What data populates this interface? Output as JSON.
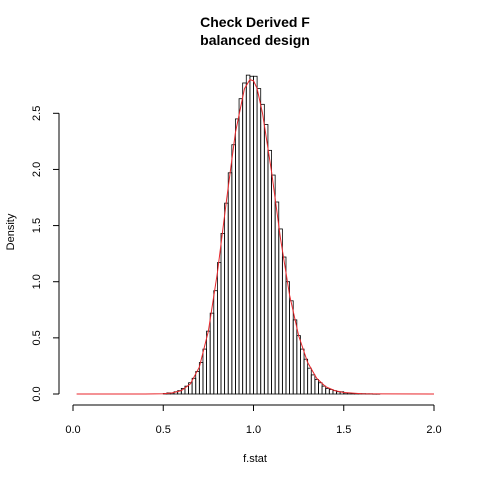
{
  "chart_data": {
    "type": "bar",
    "title_lines": [
      "Check Derived F",
      "balanced design"
    ],
    "xlabel": "f.stat",
    "ylabel": "Density",
    "xlim": [
      0,
      2
    ],
    "ylim": [
      0,
      2.85
    ],
    "x_ticks": [
      {
        "value": 0.0,
        "label": "0.0"
      },
      {
        "value": 0.5,
        "label": "0.5"
      },
      {
        "value": 1.0,
        "label": "1.0"
      },
      {
        "value": 1.5,
        "label": "1.5"
      },
      {
        "value": 2.0,
        "label": "2.0"
      }
    ],
    "y_ticks": [
      {
        "value": 0.0,
        "label": "0.0"
      },
      {
        "value": 0.5,
        "label": "0.5"
      },
      {
        "value": 1.0,
        "label": "1.0"
      },
      {
        "value": 1.5,
        "label": "1.5"
      },
      {
        "value": 2.0,
        "label": "2.0"
      },
      {
        "value": 2.5,
        "label": "2.5"
      }
    ],
    "bin_width": 0.02,
    "bins_start": [
      0.5,
      0.52,
      0.54,
      0.56,
      0.58,
      0.6,
      0.62,
      0.64,
      0.66,
      0.68,
      0.7,
      0.72,
      0.74,
      0.76,
      0.78,
      0.8,
      0.82,
      0.84,
      0.86,
      0.88,
      0.9,
      0.92,
      0.94,
      0.96,
      0.98,
      1.0,
      1.02,
      1.04,
      1.06,
      1.08,
      1.1,
      1.12,
      1.14,
      1.16,
      1.18,
      1.2,
      1.22,
      1.24,
      1.26,
      1.28,
      1.3,
      1.32,
      1.34,
      1.36,
      1.38,
      1.4,
      1.42,
      1.44,
      1.46,
      1.48,
      1.5,
      1.52,
      1.54,
      1.56,
      1.58,
      1.6,
      1.62,
      1.64,
      1.66,
      1.68
    ],
    "density": [
      0.005,
      0.01,
      0.01,
      0.02,
      0.03,
      0.05,
      0.07,
      0.1,
      0.14,
      0.2,
      0.28,
      0.4,
      0.56,
      0.72,
      0.92,
      1.17,
      1.43,
      1.7,
      1.97,
      2.22,
      2.45,
      2.63,
      2.77,
      2.84,
      2.83,
      2.83,
      2.72,
      2.58,
      2.4,
      2.17,
      1.95,
      1.71,
      1.47,
      1.22,
      1.0,
      0.83,
      0.66,
      0.52,
      0.4,
      0.31,
      0.23,
      0.17,
      0.13,
      0.1,
      0.07,
      0.05,
      0.04,
      0.03,
      0.02,
      0.02,
      0.01,
      0.01,
      0.005,
      0.005,
      0.003,
      0.003,
      0.002,
      0.002,
      0.001,
      0.001
    ],
    "curve": {
      "color": "#e8262b",
      "x": [
        0.02,
        0.4,
        0.5,
        0.55,
        0.6,
        0.65,
        0.7,
        0.75,
        0.8,
        0.85,
        0.9,
        0.95,
        0.98,
        1.0,
        1.02,
        1.05,
        1.1,
        1.15,
        1.2,
        1.25,
        1.3,
        1.35,
        1.4,
        1.45,
        1.5,
        1.6,
        2.0
      ],
      "density": [
        0.0,
        0.0,
        0.002,
        0.01,
        0.03,
        0.09,
        0.24,
        0.56,
        1.08,
        1.72,
        2.33,
        2.72,
        2.8,
        2.79,
        2.72,
        2.5,
        1.98,
        1.38,
        0.88,
        0.52,
        0.28,
        0.14,
        0.065,
        0.03,
        0.013,
        0.002,
        0.0
      ]
    },
    "grid": false,
    "legend": "none"
  }
}
